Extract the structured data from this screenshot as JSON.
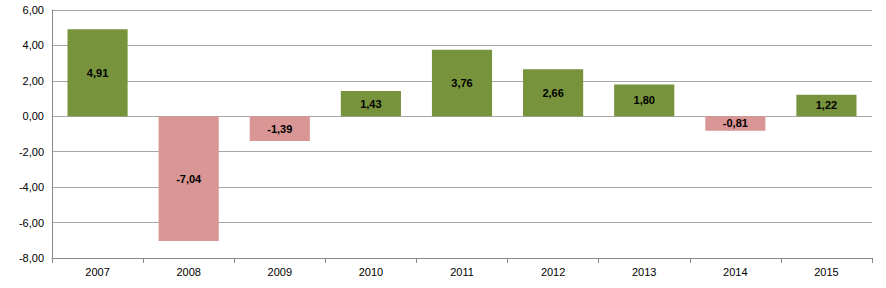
{
  "chart_data": {
    "type": "bar",
    "categories": [
      "2007",
      "2008",
      "2009",
      "2010",
      "2011",
      "2012",
      "2013",
      "2014",
      "2015"
    ],
    "values": [
      4.91,
      -7.04,
      -1.39,
      1.43,
      3.76,
      2.66,
      1.8,
      -0.81,
      1.22
    ],
    "value_labels": [
      "4,91",
      "-7,04",
      "-1,39",
      "1,43",
      "3,76",
      "2,66",
      "1,80",
      "-0,81",
      "1,22"
    ],
    "colors": [
      "#77933c",
      "#d99694",
      "#d99694",
      "#77933c",
      "#77933c",
      "#77933c",
      "#77933c",
      "#d99694",
      "#77933c"
    ],
    "data_labels": true,
    "ylim": [
      -8,
      6
    ],
    "yticks": [
      {
        "value": -8,
        "label": "-8,00"
      },
      {
        "value": -6,
        "label": "-6,00"
      },
      {
        "value": -4,
        "label": "-4,00"
      },
      {
        "value": -2,
        "label": "-2,00"
      },
      {
        "value": 0,
        "label": "0,00"
      },
      {
        "value": 2,
        "label": "2,00"
      },
      {
        "value": 4,
        "label": "4,00"
      },
      {
        "value": 6,
        "label": "6,00"
      }
    ],
    "grid": true
  }
}
